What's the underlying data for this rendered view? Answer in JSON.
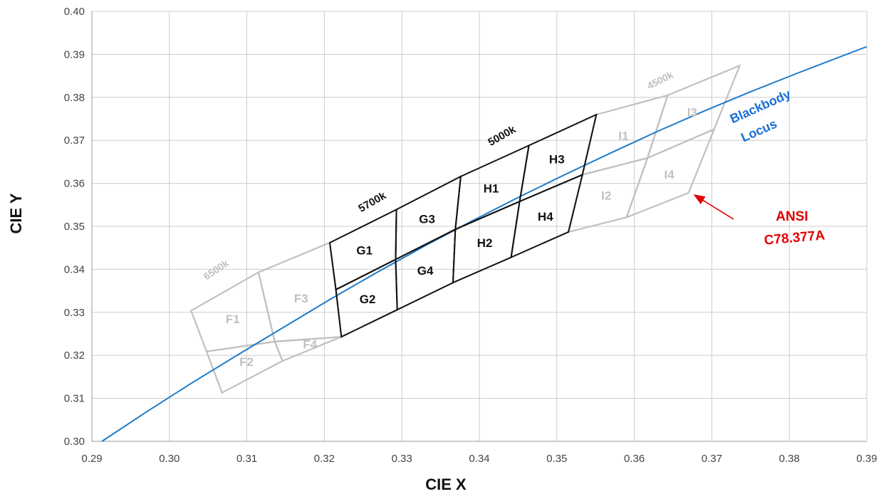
{
  "chart_data": {
    "type": "line",
    "xlabel": "CIE X",
    "ylabel": "CIE Y",
    "xlim": [
      0.29,
      0.39
    ],
    "ylim": [
      0.3,
      0.4
    ],
    "x_ticks": [
      "0.29",
      "0.30",
      "0.31",
      "0.32",
      "0.33",
      "0.34",
      "0.35",
      "0.36",
      "0.37",
      "0.38",
      "0.39"
    ],
    "y_ticks": [
      "0.30",
      "0.31",
      "0.32",
      "0.33",
      "0.34",
      "0.35",
      "0.36",
      "0.37",
      "0.38",
      "0.39",
      "0.40"
    ],
    "grid": true,
    "colors": {
      "locus": "#1f7bc8",
      "active": "#111111",
      "inactive": "#c0c0c0",
      "annotation": "#e00000",
      "locus_label": "#1a6fd6"
    },
    "series": [
      {
        "name": "Blackbody Locus",
        "points": [
          [
            0.2913,
            0.3
          ],
          [
            0.297,
            0.3068
          ],
          [
            0.303,
            0.3137
          ],
          [
            0.309,
            0.3203
          ],
          [
            0.315,
            0.3268
          ],
          [
            0.321,
            0.3333
          ],
          [
            0.327,
            0.3395
          ],
          [
            0.333,
            0.3455
          ],
          [
            0.339,
            0.3512
          ],
          [
            0.345,
            0.3567
          ],
          [
            0.351,
            0.362
          ],
          [
            0.357,
            0.3671
          ],
          [
            0.363,
            0.3721
          ],
          [
            0.369,
            0.3768
          ],
          [
            0.375,
            0.3813
          ],
          [
            0.381,
            0.3856
          ],
          [
            0.39,
            0.3918
          ]
        ]
      }
    ],
    "quadrangles": [
      {
        "label": "F1",
        "group": "inactive",
        "corners": [
          [
            0.3028,
            0.3304
          ],
          [
            0.3115,
            0.3393
          ],
          [
            0.3136,
            0.3232
          ],
          [
            0.3048,
            0.3209
          ]
        ]
      },
      {
        "label": "F2",
        "group": "inactive",
        "corners": [
          [
            0.3048,
            0.3209
          ],
          [
            0.3136,
            0.3232
          ],
          [
            0.3146,
            0.3187
          ],
          [
            0.3068,
            0.3113
          ]
        ]
      },
      {
        "label": "F3",
        "group": "inactive",
        "corners": [
          [
            0.3115,
            0.3393
          ],
          [
            0.3207,
            0.3462
          ],
          [
            0.3222,
            0.3243
          ],
          [
            0.3136,
            0.3232
          ]
        ]
      },
      {
        "label": "F4",
        "group": "inactive",
        "corners": [
          [
            0.3136,
            0.3232
          ],
          [
            0.3222,
            0.3243
          ],
          [
            0.3222,
            0.3243
          ],
          [
            0.3146,
            0.3187
          ]
        ]
      },
      {
        "label": "G1",
        "group": "active",
        "corners": [
          [
            0.3207,
            0.3462
          ],
          [
            0.3293,
            0.3539
          ],
          [
            0.3292,
            0.3423
          ],
          [
            0.3215,
            0.3353
          ]
        ]
      },
      {
        "label": "G2",
        "group": "active",
        "corners": [
          [
            0.3215,
            0.3353
          ],
          [
            0.3292,
            0.3423
          ],
          [
            0.3294,
            0.3306
          ],
          [
            0.3222,
            0.3243
          ]
        ]
      },
      {
        "label": "G3",
        "group": "active",
        "corners": [
          [
            0.3293,
            0.3539
          ],
          [
            0.3376,
            0.3616
          ],
          [
            0.3369,
            0.3493
          ],
          [
            0.3292,
            0.3423
          ]
        ]
      },
      {
        "label": "G4",
        "group": "active",
        "corners": [
          [
            0.3292,
            0.3423
          ],
          [
            0.3369,
            0.3493
          ],
          [
            0.3366,
            0.3369
          ],
          [
            0.3294,
            0.3306
          ]
        ]
      },
      {
        "label": "H1",
        "group": "active",
        "corners": [
          [
            0.3376,
            0.3616
          ],
          [
            0.3464,
            0.3688
          ],
          [
            0.3452,
            0.3558
          ],
          [
            0.3369,
            0.3493
          ]
        ]
      },
      {
        "label": "H2",
        "group": "active",
        "corners": [
          [
            0.3369,
            0.3493
          ],
          [
            0.3452,
            0.3558
          ],
          [
            0.3441,
            0.3428
          ],
          [
            0.3366,
            0.3369
          ]
        ]
      },
      {
        "label": "H3",
        "group": "active",
        "corners": [
          [
            0.3464,
            0.3688
          ],
          [
            0.3551,
            0.376
          ],
          [
            0.3533,
            0.362
          ],
          [
            0.3452,
            0.3558
          ]
        ]
      },
      {
        "label": "H4",
        "group": "active",
        "corners": [
          [
            0.3452,
            0.3558
          ],
          [
            0.3533,
            0.362
          ],
          [
            0.3515,
            0.3487
          ],
          [
            0.3441,
            0.3428
          ]
        ]
      },
      {
        "label": "I1",
        "group": "inactive",
        "corners": [
          [
            0.3551,
            0.376
          ],
          [
            0.3643,
            0.3805
          ],
          [
            0.3617,
            0.3659
          ],
          [
            0.3533,
            0.362
          ]
        ]
      },
      {
        "label": "I2",
        "group": "inactive",
        "corners": [
          [
            0.3533,
            0.362
          ],
          [
            0.3617,
            0.3659
          ],
          [
            0.359,
            0.3521
          ],
          [
            0.3515,
            0.3487
          ]
        ]
      },
      {
        "label": "I3",
        "group": "inactive",
        "corners": [
          [
            0.3643,
            0.3805
          ],
          [
            0.3736,
            0.3874
          ],
          [
            0.3703,
            0.3726
          ],
          [
            0.3617,
            0.3659
          ]
        ]
      },
      {
        "label": "I4",
        "group": "inactive",
        "corners": [
          [
            0.3617,
            0.3659
          ],
          [
            0.3703,
            0.3726
          ],
          [
            0.367,
            0.3578
          ],
          [
            0.359,
            0.3521
          ]
        ]
      }
    ],
    "cct_labels": [
      "6500k",
      "5700k",
      "5000k",
      "4500k"
    ],
    "annotations": {
      "locus_line1": "Blackbody",
      "locus_line2": "Locus",
      "ansi_line1": "ANSI",
      "ansi_line2": "C78.377A"
    }
  }
}
